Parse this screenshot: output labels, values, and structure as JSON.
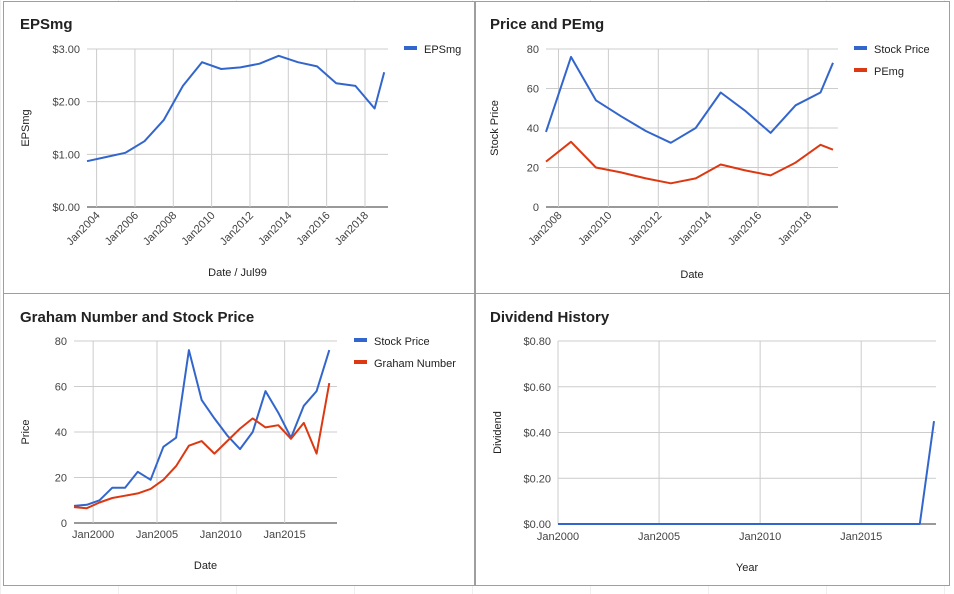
{
  "chart_data": [
    {
      "id": "eps",
      "type": "line",
      "title": "EPSmg",
      "xlabel": "Date / Jul99",
      "ylabel": "EPSmg",
      "ylim": [
        0,
        3
      ],
      "y_ticks": [
        "$0.00",
        "$1.00",
        "$2.00",
        "$3.00"
      ],
      "y_tick_values": [
        0,
        1,
        2,
        3
      ],
      "x_ticks": [
        "Jan2004",
        "Jan2006",
        "Jan2008",
        "Jan2010",
        "Jan2012",
        "Jan2014",
        "Jan2016",
        "Jan2018"
      ],
      "x_tick_values": [
        2004,
        2006,
        2008,
        2010,
        2012,
        2014,
        2016,
        2018
      ],
      "xlim": [
        2003.5,
        2019.2
      ],
      "x_tick_rotated": true,
      "grid": true,
      "legend": "right",
      "series": [
        {
          "name": "EPSmg",
          "color": "#3366cc",
          "x": [
            2003.5,
            2004.5,
            2005.5,
            2006.5,
            2007.5,
            2008.5,
            2009.5,
            2010.5,
            2011.5,
            2012.5,
            2013.5,
            2014.5,
            2015.5,
            2016.5,
            2017.5,
            2018.5,
            2019.0
          ],
          "y": [
            0.87,
            0.95,
            1.03,
            1.25,
            1.65,
            2.3,
            2.75,
            2.62,
            2.65,
            2.72,
            2.87,
            2.75,
            2.67,
            2.35,
            2.3,
            1.87,
            2.56
          ]
        }
      ]
    },
    {
      "id": "price_pe",
      "type": "line",
      "title": "Price and PEmg",
      "xlabel": "Date",
      "ylabel": "Stock Price",
      "ylim": [
        0,
        80
      ],
      "y_ticks": [
        "0",
        "20",
        "40",
        "60",
        "80"
      ],
      "y_tick_values": [
        0,
        20,
        40,
        60,
        80
      ],
      "x_ticks": [
        "Jan2008",
        "Jan2010",
        "Jan2012",
        "Jan2014",
        "Jan2016",
        "Jan2018"
      ],
      "x_tick_values": [
        2008,
        2010,
        2012,
        2014,
        2016,
        2018
      ],
      "xlim": [
        2007.5,
        2019.2
      ],
      "x_tick_rotated": true,
      "grid": true,
      "legend": "right",
      "series": [
        {
          "name": "Stock Price",
          "color": "#3366cc",
          "x": [
            2007.5,
            2008.5,
            2009.5,
            2010.5,
            2011.5,
            2012.5,
            2013.5,
            2014.5,
            2015.5,
            2016.5,
            2017.5,
            2018.5,
            2019.0
          ],
          "y": [
            38,
            76,
            54,
            46,
            38.5,
            32.5,
            40,
            58,
            48.5,
            37.5,
            51.5,
            58,
            73
          ]
        },
        {
          "name": "PEmg",
          "color": "#dc3912",
          "x": [
            2007.5,
            2008.5,
            2009.5,
            2010.5,
            2011.5,
            2012.5,
            2013.5,
            2014.5,
            2015.5,
            2016.5,
            2017.5,
            2018.5,
            2019.0
          ],
          "y": [
            23,
            33,
            20,
            17.5,
            14.5,
            12,
            14.5,
            21.5,
            18.5,
            16,
            22.5,
            31.5,
            29
          ]
        }
      ]
    },
    {
      "id": "graham",
      "type": "line",
      "title": "Graham Number and Stock Price",
      "xlabel": "Date",
      "ylabel": "Price",
      "ylim": [
        0,
        80
      ],
      "y_ticks": [
        "0",
        "20",
        "40",
        "60",
        "80"
      ],
      "y_tick_values": [
        0,
        20,
        40,
        60,
        80
      ],
      "x_ticks": [
        "Jan2000",
        "Jan2005",
        "Jan2010",
        "Jan2015"
      ],
      "x_tick_values": [
        2000,
        2005,
        2010,
        2015
      ],
      "xlim": [
        1998.5,
        2019.1
      ],
      "x_tick_rotated": false,
      "grid": true,
      "legend": "right",
      "series": [
        {
          "name": "Stock Price",
          "color": "#3366cc",
          "x": [
            1998.5,
            1999.5,
            2000.5,
            2001.5,
            2002.5,
            2003.5,
            2004.5,
            2005.5,
            2006.5,
            2007.5,
            2008.5,
            2009.5,
            2010.5,
            2011.5,
            2012.5,
            2013.5,
            2014.5,
            2015.5,
            2016.5,
            2017.5,
            2018.5
          ],
          "y": [
            7.5,
            8,
            10,
            15.5,
            15.5,
            22.5,
            19,
            33.5,
            37.5,
            76,
            54,
            46,
            38.5,
            32.5,
            40,
            58,
            48.5,
            37.5,
            51.5,
            58,
            76
          ]
        },
        {
          "name": "Graham Number",
          "color": "#dc3912",
          "x": [
            1998.5,
            1999.5,
            2000.5,
            2001.5,
            2002.5,
            2003.5,
            2004.5,
            2005.5,
            2006.5,
            2007.5,
            2008.5,
            2009.5,
            2010.5,
            2011.5,
            2012.5,
            2013.5,
            2014.5,
            2015.5,
            2016.5,
            2017.5,
            2018.5
          ],
          "y": [
            7,
            6.5,
            9,
            11,
            12,
            13,
            15,
            19,
            25,
            34,
            36,
            30.5,
            36,
            41.5,
            46,
            42,
            43,
            37,
            44,
            30.5,
            61.5
          ]
        }
      ]
    },
    {
      "id": "dividend",
      "type": "line",
      "title": "Dividend History",
      "xlabel": "Year",
      "ylabel": "Dividend",
      "ylim": [
        0,
        0.8
      ],
      "y_ticks": [
        "$0.00",
        "$0.20",
        "$0.40",
        "$0.60",
        "$0.80"
      ],
      "y_tick_values": [
        0,
        0.2,
        0.4,
        0.6,
        0.8
      ],
      "x_ticks": [
        "Jan2000",
        "Jan2005",
        "Jan2010",
        "Jan2015"
      ],
      "x_tick_values": [
        2000,
        2005,
        2010,
        2015
      ],
      "xlim": [
        2000,
        2018.7
      ],
      "x_tick_rotated": false,
      "grid": true,
      "legend": "none",
      "series": [
        {
          "name": "Dividend",
          "color": "#3366cc",
          "x": [
            2000,
            2017.9,
            2018.6
          ],
          "y": [
            0,
            0,
            0.45
          ]
        }
      ]
    }
  ]
}
